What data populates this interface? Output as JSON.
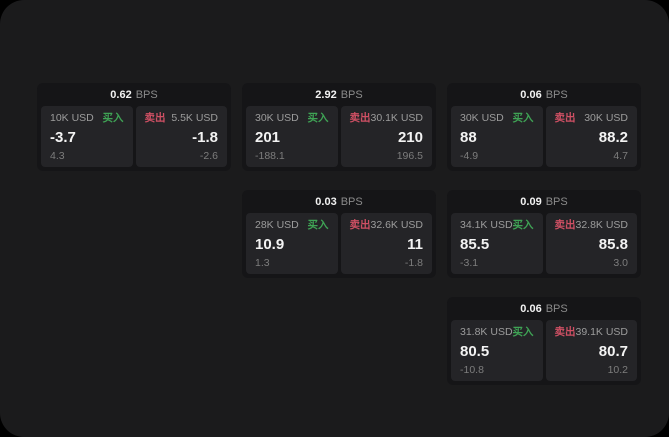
{
  "labels": {
    "bps_unit": "BPS",
    "buy": "买入",
    "sell": "卖出"
  },
  "colors": {
    "outside": "#000000",
    "surface": "#1b1b1c",
    "card": "#151517",
    "panel": "#242427",
    "buy": "#3fa355",
    "sell": "#cf5064",
    "value_text": "#f3f3f3",
    "muted_text": "#9c9c9c",
    "dim_text": "#7d7d7d"
  },
  "cards": [
    {
      "bps": "0.62",
      "row": 1,
      "col": 1,
      "buy": {
        "size": "10K USD",
        "value": "-3.7",
        "sub": "4.3"
      },
      "sell": {
        "size": "5.5K USD",
        "value": "-1.8",
        "sub": "-2.6"
      }
    },
    {
      "bps": "2.92",
      "row": 1,
      "col": 2,
      "buy": {
        "size": "30K USD",
        "value": "201",
        "sub": "-188.1"
      },
      "sell": {
        "size": "30.1K USD",
        "value": "210",
        "sub": "196.5"
      }
    },
    {
      "bps": "0.06",
      "row": 1,
      "col": 3,
      "buy": {
        "size": "30K USD",
        "value": "88",
        "sub": "-4.9"
      },
      "sell": {
        "size": "30K USD",
        "value": "88.2",
        "sub": "4.7"
      }
    },
    {
      "bps": "0.03",
      "row": 2,
      "col": 2,
      "buy": {
        "size": "28K USD",
        "value": "10.9",
        "sub": "1.3"
      },
      "sell": {
        "size": "32.6K USD",
        "value": "11",
        "sub": "-1.8"
      }
    },
    {
      "bps": "0.09",
      "row": 2,
      "col": 3,
      "buy": {
        "size": "34.1K USD",
        "value": "85.5",
        "sub": "-3.1"
      },
      "sell": {
        "size": "32.8K USD",
        "value": "85.8",
        "sub": "3.0"
      }
    },
    {
      "bps": "0.06",
      "row": 3,
      "col": 3,
      "buy": {
        "size": "31.8K USD",
        "value": "80.5",
        "sub": "-10.8"
      },
      "sell": {
        "size": "39.1K USD",
        "value": "80.7",
        "sub": "10.2"
      }
    }
  ]
}
